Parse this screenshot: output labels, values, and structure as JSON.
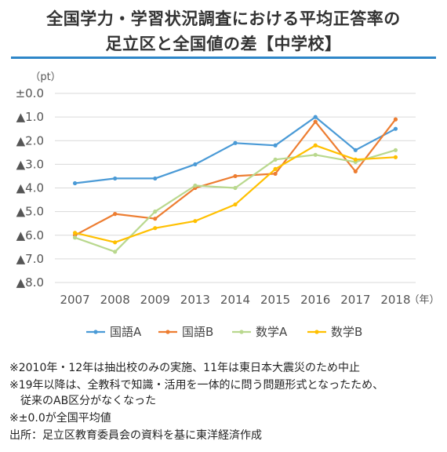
{
  "title": {
    "line1": "全国学力・学習状況調査における平均正答率の",
    "line2": "足立区と全国値の差【中学校】"
  },
  "chart_data": {
    "type": "line",
    "unit_label": "（pt）",
    "x_unit": "（年）",
    "categories": [
      "2007",
      "2008",
      "2009",
      "2013",
      "2014",
      "2015",
      "2016",
      "2017",
      "2018"
    ],
    "y_ticks": [
      "±0.0",
      "▲1.0",
      "▲2.0",
      "▲3.0",
      "▲4.0",
      "▲5.0",
      "▲6.0",
      "▲7.0",
      "▲8.0"
    ],
    "ylim": [
      0,
      -8
    ],
    "grid": true,
    "legend_position": "bottom",
    "series": [
      {
        "name": "国語A",
        "color": "#4a9ad6",
        "values": [
          -3.8,
          -3.6,
          -3.6,
          -3.0,
          -2.1,
          -2.2,
          -1.0,
          -2.4,
          -1.5
        ]
      },
      {
        "name": "国語B",
        "color": "#ed7d31",
        "values": [
          -6.0,
          -5.1,
          -5.3,
          -4.0,
          -3.5,
          -3.4,
          -1.2,
          -3.3,
          -1.1
        ]
      },
      {
        "name": "数学A",
        "color": "#b9d88e",
        "values": [
          -6.1,
          -6.7,
          -5.0,
          -3.9,
          -4.0,
          -2.8,
          -2.6,
          -2.9,
          -2.4
        ]
      },
      {
        "name": "数学B",
        "color": "#ffc000",
        "values": [
          -5.9,
          -6.3,
          -5.7,
          -5.4,
          -4.7,
          -3.2,
          -2.2,
          -2.8,
          -2.7
        ]
      }
    ]
  },
  "notes": {
    "n1": "※2010年・12年は抽出校のみの実施、11年は東日本大震災のため中止",
    "n2": "※19年以降は、全教科で知識・活用を一体的に問う問題形式となったため、",
    "n3": "従来のAB区分がなくなった",
    "n4": "※±0.0が全国平均値"
  },
  "source": "出所：足立区教育委員会の資料を基に東洋経済作成"
}
